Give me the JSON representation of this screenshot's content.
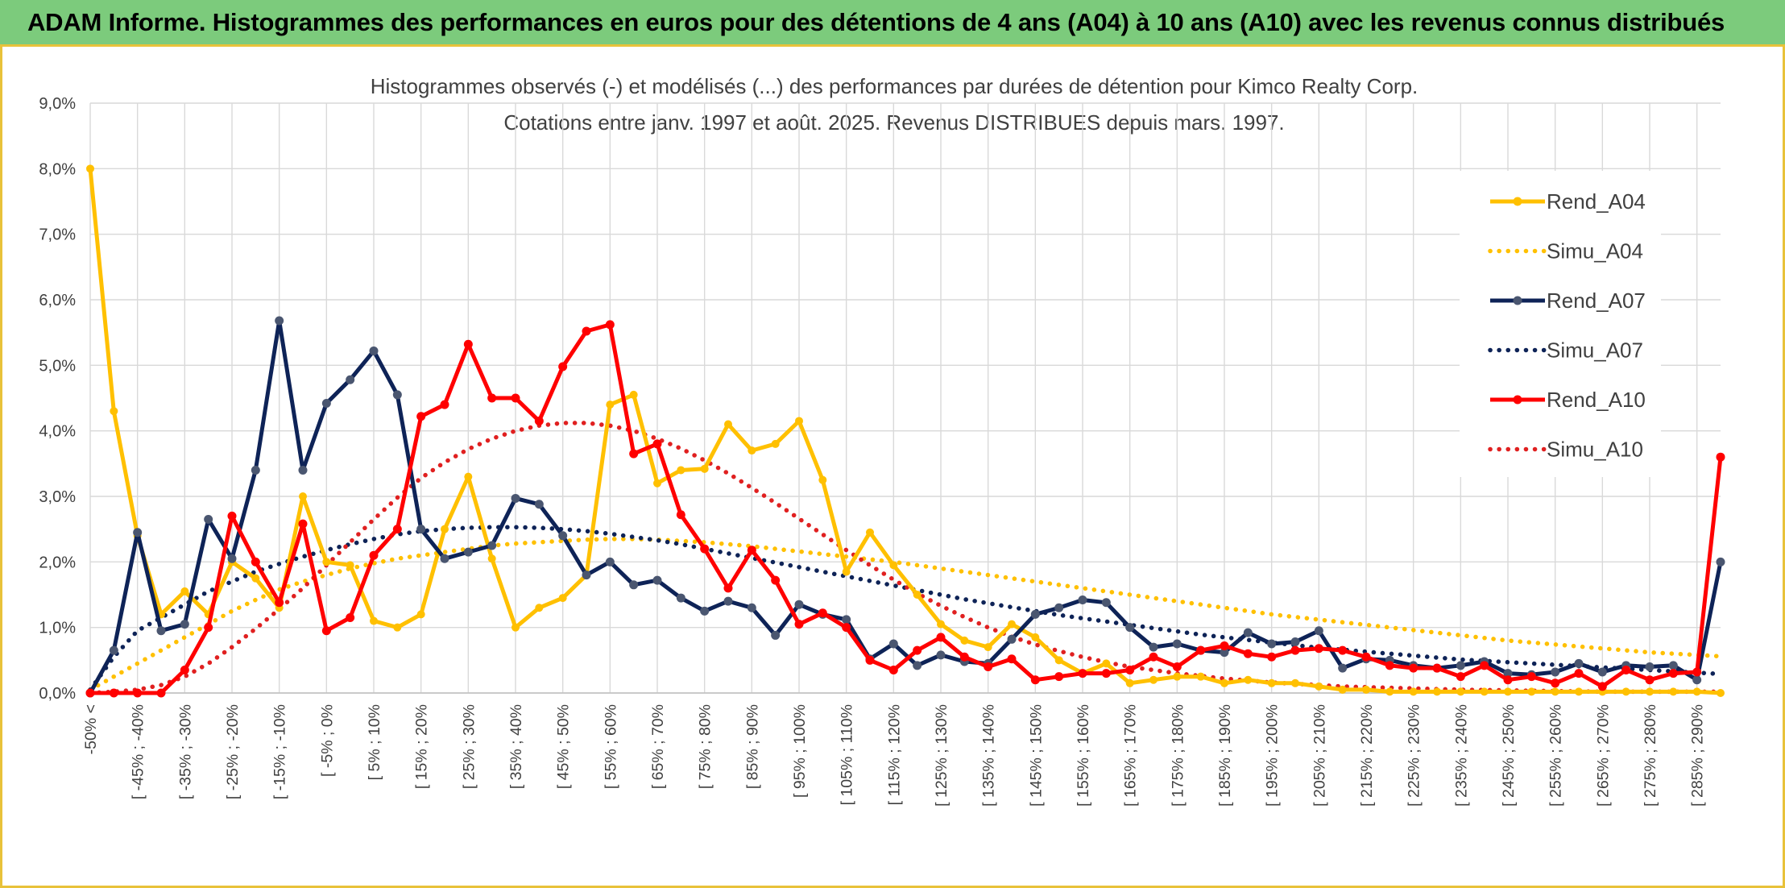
{
  "banner": {
    "title": "ADAM Informe. Histogrammes des performances en euros pour des détentions de 4 ans (A04) à 10 ans (A10) avec les revenus connus distribués"
  },
  "colors": {
    "banner_bg": "#7ccb7c",
    "frame_border": "#e8c23a",
    "rend_a04": "#ffc000",
    "simu_a04": "#ffc000",
    "rend_a07": "#0e2357",
    "simu_a07": "#0e2357",
    "rend_a10": "#ff0000",
    "simu_a10": "#e02020"
  },
  "chart_data": {
    "type": "line",
    "title": "Histogrammes observés (-) et modélisés (...) des performances par durées de détention pour Kimco Realty Corp.",
    "subtitle": "Cotations entre janv. 1997 et août. 2025. Revenus DISTRIBUES depuis mars. 1997.",
    "xlabel": "",
    "ylabel": "",
    "ylim": [
      0,
      9
    ],
    "yticks": [
      "0,0%",
      "1,0%",
      "2,0%",
      "3,0%",
      "4,0%",
      "5,0%",
      "6,0%",
      "7,0%",
      "8,0%",
      "9,0%"
    ],
    "grid": true,
    "legend_position": "right",
    "x_labels": [
      "-50% <",
      "[ -45% ; -40%",
      "[ -35% ; -30%",
      "[ -25% ; -20%",
      "[ -15% ; -10%",
      "[ -5% ; 0%",
      "[ 5% ; 10%",
      "[ 15% ; 20%",
      "[ 25% ; 30%",
      "[ 35% ; 40%",
      "[ 45% ; 50%",
      "[ 55% ; 60%",
      "[ 65% ; 70%",
      "[ 75% ; 80%",
      "[ 85% ; 90%",
      "[ 95% ; 100%",
      "[ 105% ; 110%",
      "[ 115% ; 120%",
      "[ 125% ; 130%",
      "[ 135% ; 140%",
      "[ 145% ; 150%",
      "[ 155% ; 160%",
      "[ 165% ; 170%",
      "[ 175% ; 180%",
      "[ 185% ; 190%",
      "[ 195% ; 200%",
      "[ 205% ; 210%",
      "[ 215% ; 220%",
      "[ 225% ; 230%",
      "[ 235% ; 240%",
      "[ 245% ; 250%",
      "[ 255% ; 260%",
      "[ 265% ; 270%",
      "[ 275% ; 280%",
      "[ 285% ; 290%"
    ],
    "series": [
      {
        "name": "Rend_A04",
        "style": "solid",
        "values": [
          8.0,
          4.3,
          2.4,
          1.2,
          1.55,
          1.2,
          2.0,
          1.75,
          1.3,
          3.0,
          2.0,
          1.95,
          1.1,
          1.0,
          1.2,
          2.5,
          3.3,
          2.05,
          1.0,
          1.3,
          1.45,
          1.8,
          4.4,
          4.55,
          3.2,
          3.4,
          3.42,
          4.1,
          3.7,
          3.8,
          4.15,
          3.25,
          1.85,
          2.45,
          1.95,
          1.5,
          1.05,
          0.8,
          0.7,
          1.05,
          0.85,
          0.5,
          0.3,
          0.45,
          0.15,
          0.2,
          0.25,
          0.25,
          0.15,
          0.2,
          0.15,
          0.15,
          0.1,
          0.05,
          0.05,
          0.02,
          0.02,
          0.02,
          0.02,
          0.02,
          0.02,
          0.02,
          0.02,
          0.02,
          0.02,
          0.02,
          0.02,
          0.02,
          0.02,
          0.0
        ]
      },
      {
        "name": "Simu_A04",
        "style": "dotted",
        "values": [
          0.05,
          0.25,
          0.45,
          0.65,
          0.85,
          1.05,
          1.25,
          1.42,
          1.58,
          1.7,
          1.8,
          1.9,
          1.98,
          2.05,
          2.1,
          2.15,
          2.2,
          2.25,
          2.28,
          2.3,
          2.32,
          2.34,
          2.35,
          2.35,
          2.34,
          2.32,
          2.3,
          2.27,
          2.24,
          2.2,
          2.16,
          2.12,
          2.08,
          2.04,
          2.0,
          1.95,
          1.9,
          1.85,
          1.8,
          1.75,
          1.7,
          1.65,
          1.6,
          1.55,
          1.5,
          1.45,
          1.4,
          1.35,
          1.3,
          1.25,
          1.2,
          1.16,
          1.12,
          1.08,
          1.04,
          1.0,
          0.96,
          0.92,
          0.88,
          0.84,
          0.8,
          0.77,
          0.74,
          0.71,
          0.68,
          0.65,
          0.62,
          0.6,
          0.58,
          0.56
        ]
      },
      {
        "name": "Rend_A07",
        "style": "solid",
        "values": [
          0.0,
          0.65,
          2.45,
          0.95,
          1.05,
          2.65,
          2.05,
          3.4,
          5.68,
          3.4,
          4.42,
          4.78,
          5.22,
          4.55,
          2.5,
          2.05,
          2.15,
          2.25,
          2.97,
          2.88,
          2.4,
          1.8,
          2.0,
          1.65,
          1.72,
          1.45,
          1.25,
          1.4,
          1.3,
          0.88,
          1.35,
          1.2,
          1.12,
          0.52,
          0.75,
          0.42,
          0.58,
          0.48,
          0.45,
          0.82,
          1.2,
          1.3,
          1.42,
          1.38,
          1.0,
          0.7,
          0.75,
          0.65,
          0.62,
          0.92,
          0.75,
          0.78,
          0.95,
          0.38,
          0.52,
          0.5,
          0.42,
          0.38,
          0.42,
          0.48,
          0.3,
          0.28,
          0.32,
          0.45,
          0.32,
          0.42,
          0.4,
          0.42,
          0.2,
          2.0
        ]
      },
      {
        "name": "Simu_A07",
        "style": "dotted",
        "values": [
          0.05,
          0.55,
          0.95,
          1.15,
          1.35,
          1.55,
          1.7,
          1.85,
          1.97,
          2.08,
          2.18,
          2.27,
          2.35,
          2.42,
          2.47,
          2.5,
          2.52,
          2.53,
          2.53,
          2.52,
          2.5,
          2.47,
          2.43,
          2.38,
          2.33,
          2.27,
          2.2,
          2.13,
          2.06,
          1.99,
          1.92,
          1.85,
          1.78,
          1.71,
          1.64,
          1.57,
          1.5,
          1.43,
          1.37,
          1.31,
          1.25,
          1.19,
          1.14,
          1.09,
          1.04,
          0.99,
          0.94,
          0.89,
          0.85,
          0.81,
          0.77,
          0.73,
          0.69,
          0.66,
          0.63,
          0.6,
          0.57,
          0.54,
          0.51,
          0.49,
          0.47,
          0.45,
          0.43,
          0.41,
          0.39,
          0.37,
          0.35,
          0.33,
          0.31,
          0.29
        ]
      },
      {
        "name": "Rend_A10",
        "style": "solid",
        "values": [
          0.0,
          0.0,
          0.0,
          0.0,
          0.35,
          1.0,
          2.7,
          2.0,
          1.38,
          2.58,
          0.95,
          1.15,
          2.1,
          2.5,
          4.22,
          4.4,
          5.32,
          4.5,
          4.5,
          4.15,
          4.98,
          5.52,
          5.62,
          3.65,
          3.8,
          2.72,
          2.2,
          1.6,
          2.18,
          1.72,
          1.05,
          1.22,
          1.0,
          0.5,
          0.35,
          0.65,
          0.85,
          0.55,
          0.4,
          0.52,
          0.2,
          0.25,
          0.3,
          0.3,
          0.35,
          0.55,
          0.4,
          0.65,
          0.72,
          0.6,
          0.55,
          0.65,
          0.68,
          0.65,
          0.55,
          0.42,
          0.38,
          0.38,
          0.25,
          0.42,
          0.2,
          0.25,
          0.15,
          0.3,
          0.1,
          0.35,
          0.2,
          0.3,
          0.32,
          3.6
        ]
      },
      {
        "name": "Simu_A10",
        "style": "dotted",
        "values": [
          0.0,
          0.02,
          0.05,
          0.12,
          0.25,
          0.45,
          0.7,
          0.98,
          1.28,
          1.6,
          1.95,
          2.3,
          2.65,
          2.98,
          3.28,
          3.52,
          3.72,
          3.88,
          4.0,
          4.08,
          4.12,
          4.12,
          4.08,
          4.0,
          3.88,
          3.73,
          3.55,
          3.35,
          3.13,
          2.9,
          2.66,
          2.42,
          2.18,
          1.95,
          1.73,
          1.52,
          1.33,
          1.16,
          1.0,
          0.86,
          0.74,
          0.64,
          0.55,
          0.47,
          0.4,
          0.35,
          0.3,
          0.26,
          0.22,
          0.19,
          0.16,
          0.14,
          0.12,
          0.1,
          0.09,
          0.08,
          0.07,
          0.06,
          0.05,
          0.045,
          0.04,
          0.035,
          0.03,
          0.025,
          0.02,
          0.02,
          0.02,
          0.02,
          0.02,
          0.02
        ]
      }
    ]
  }
}
